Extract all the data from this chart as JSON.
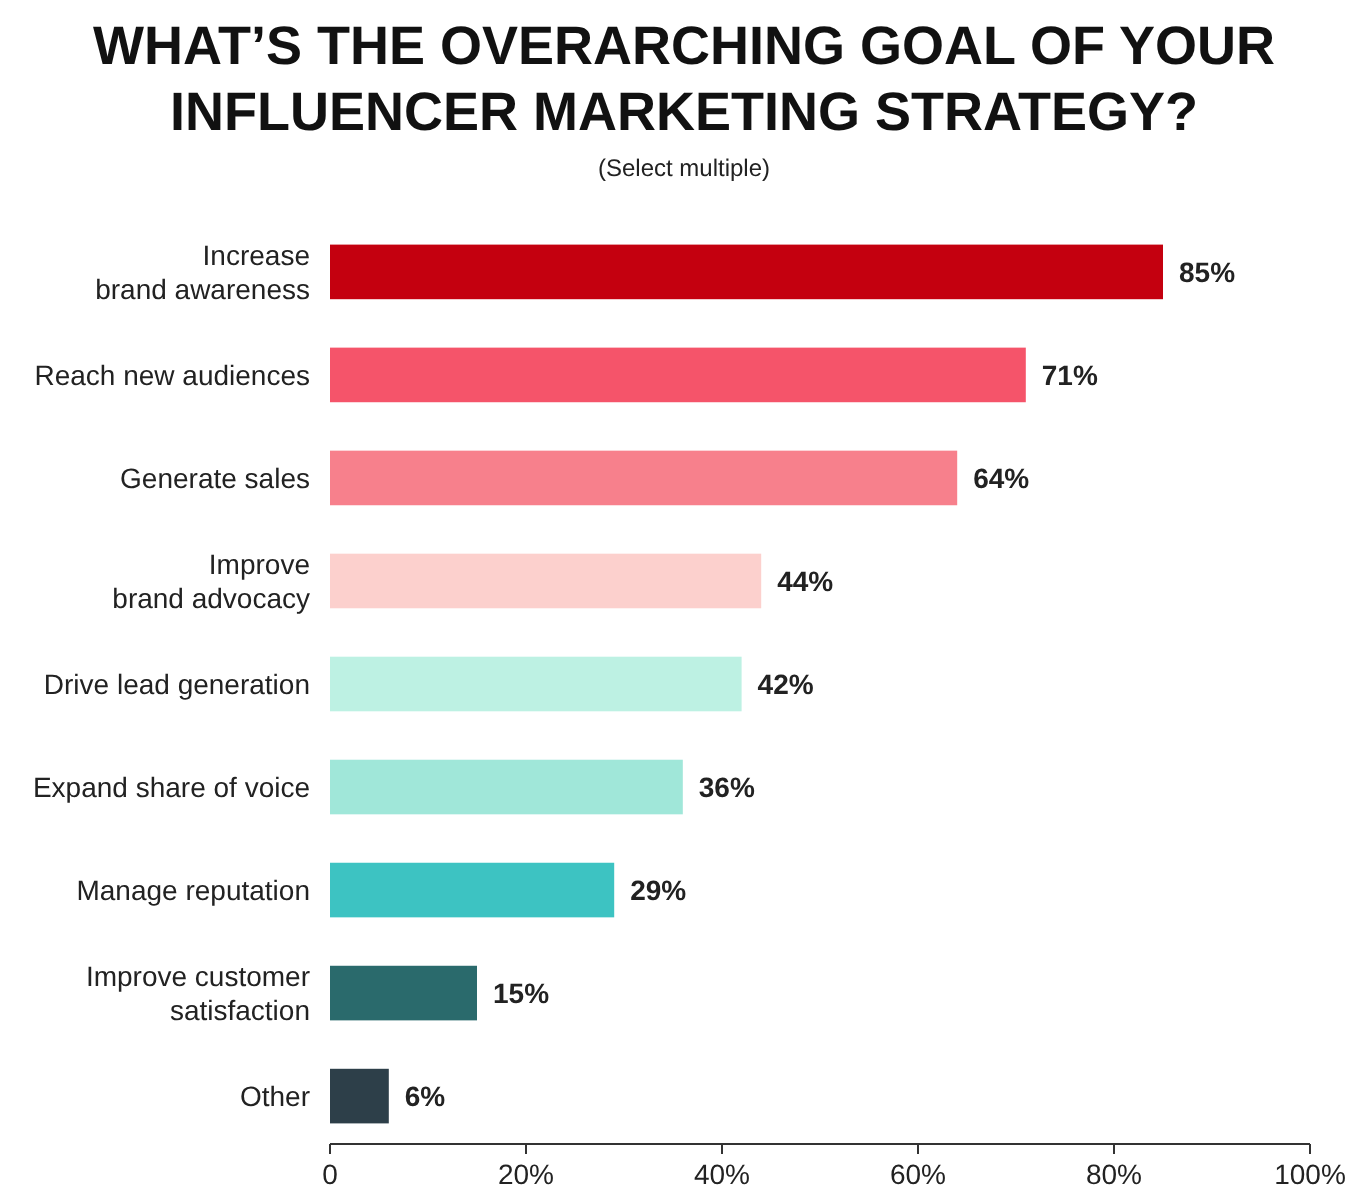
{
  "chart_data": {
    "type": "bar",
    "orientation": "horizontal",
    "title": "WHAT’S THE OVERARCHING GOAL OF YOUR\nINFLUENCER MARKETING STRATEGY?",
    "subtitle": "(Select multiple)",
    "categories": [
      "Increase\nbrand awareness",
      "Reach new audiences",
      "Generate sales",
      "Improve\nbrand advocacy",
      "Drive lead generation",
      "Expand share of voice",
      "Manage reputation",
      "Improve customer\nsatisfaction",
      "Other"
    ],
    "values": [
      85,
      71,
      64,
      44,
      42,
      36,
      29,
      15,
      6
    ],
    "value_labels": [
      "85%",
      "71%",
      "64%",
      "44%",
      "42%",
      "36%",
      "29%",
      "15%",
      "6%"
    ],
    "colors": [
      "#c4000f",
      "#f5546a",
      "#f7808c",
      "#fcd0cd",
      "#bdf1e3",
      "#a0e7d9",
      "#3dc3c2",
      "#2a6a6c",
      "#2d3f49"
    ],
    "xlim": [
      0,
      100
    ],
    "xticks": [
      {
        "value": 0,
        "label": "0"
      },
      {
        "value": 20,
        "label": "20%"
      },
      {
        "value": 40,
        "label": "40%"
      },
      {
        "value": 60,
        "label": "60%"
      },
      {
        "value": 80,
        "label": "80%"
      },
      {
        "value": 100,
        "label": "100%"
      }
    ],
    "grid": false
  }
}
